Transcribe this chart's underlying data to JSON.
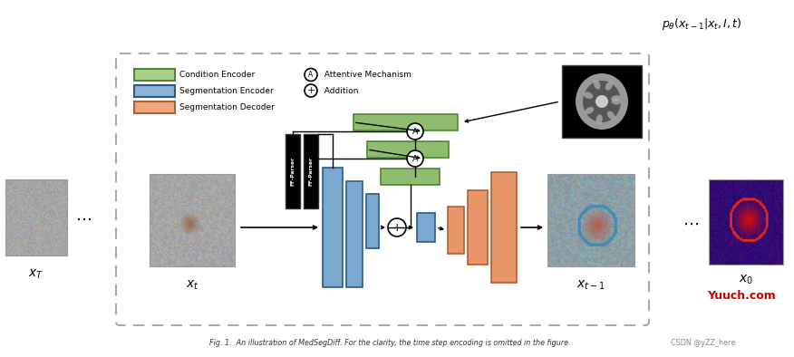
{
  "bg_color": "#ffffff",
  "caption": "Fig. 1.  An illustration of MedSegDiff. For the clarity, the time step encoding is omitted in the figure.",
  "watermark": "Yuuch.com",
  "watermark_color": "#cc0000",
  "csdn_text": "CSDN @yZZ_here",
  "color_green": "#8fbc6e",
  "color_blue": "#7ba8d0",
  "color_orange": "#e8956a",
  "color_black": "#111111",
  "color_dark_green": "#4a8a2a",
  "color_dark_blue": "#2a5a8a",
  "color_dark_orange": "#b06030",
  "dashed_box_color": "#aaaaaa",
  "legend_green_fill": "#a8d08a",
  "legend_blue_fill": "#8ab4d8",
  "legend_orange_fill": "#f0a878"
}
